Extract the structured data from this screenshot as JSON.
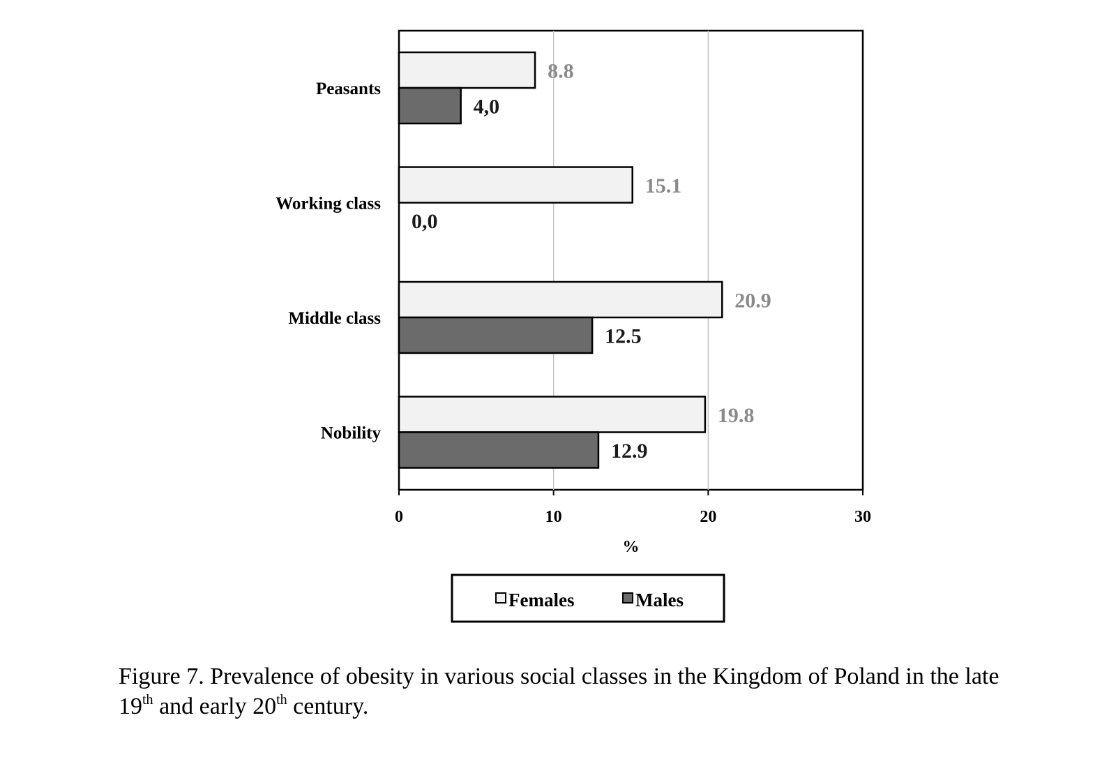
{
  "chart_data": {
    "type": "bar",
    "orientation": "horizontal",
    "categories": [
      "Peasants",
      "Working class",
      "Middle class",
      "Nobility"
    ],
    "series": [
      {
        "name": "Females",
        "values": [
          8.8,
          15.1,
          20.9,
          19.8
        ],
        "labels": [
          "8.8",
          "15.1",
          "20.9",
          "19.8"
        ],
        "color": "#f2f2f2"
      },
      {
        "name": "Males",
        "values": [
          4.0,
          0.0,
          12.5,
          12.9
        ],
        "labels": [
          "4,0",
          "0,0",
          "12.5",
          "12.9"
        ],
        "color": "#6b6b6b"
      }
    ],
    "xlim": [
      0,
      30
    ],
    "xticks": [
      0,
      10,
      20,
      30
    ],
    "xlabel": "%",
    "ylabel": "",
    "grid": "vertical",
    "legend": "bottom"
  },
  "caption": {
    "p1": "Figure 7. Prevalence of obesity in various social classes in the Kingdom of Poland in the late 19",
    "s1": "th",
    "p2": " and early 20",
    "s2": "th",
    "p3": " century."
  }
}
